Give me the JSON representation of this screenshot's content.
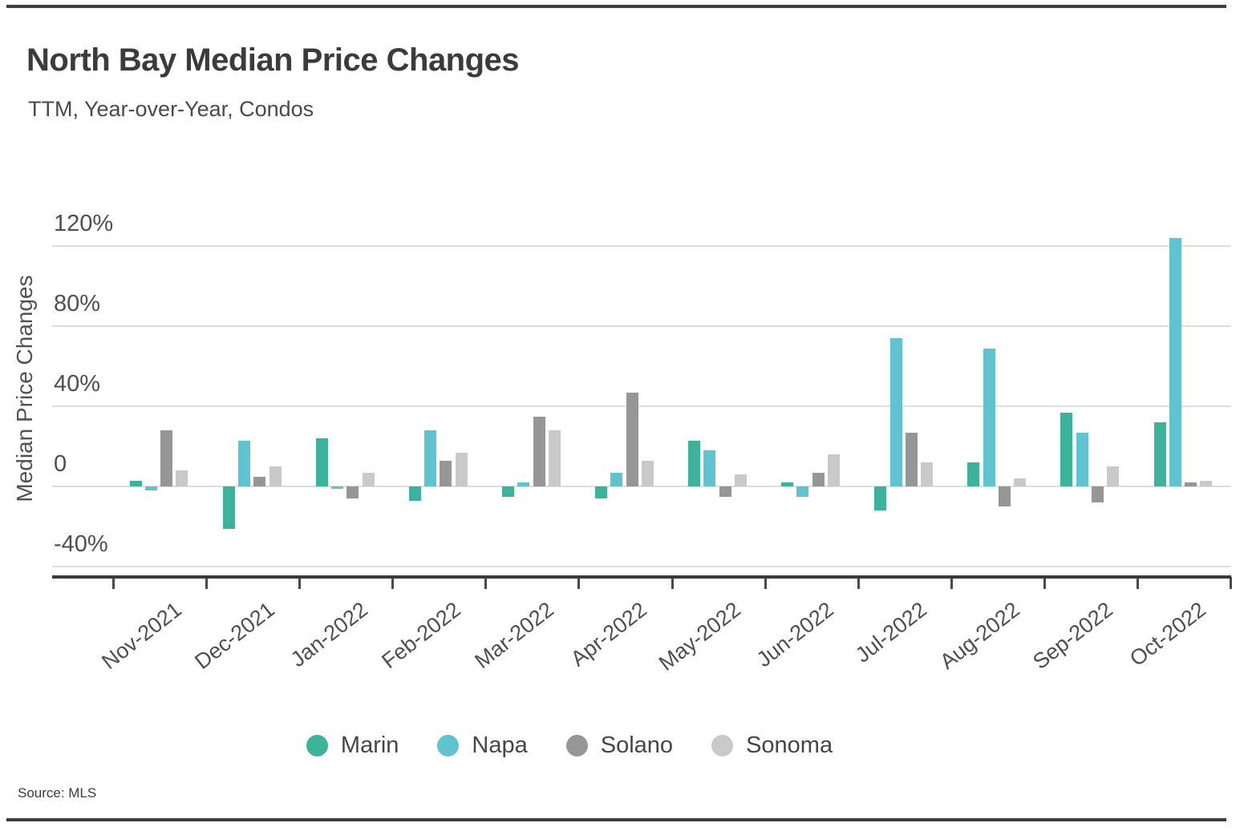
{
  "header": {
    "title": "North Bay Median Price Changes",
    "subtitle": "TTM, Year-over-Year, Condos"
  },
  "chart_data": {
    "type": "bar",
    "title": "North Bay Median Price Changes",
    "subtitle": "TTM, Year-over-Year, Condos",
    "ylabel": "Median Price Changes",
    "xlabel": "",
    "unit": "%",
    "categories": [
      "Nov-2021",
      "Dec-2021",
      "Jan-2022",
      "Feb-2022",
      "Mar-2022",
      "Apr-2022",
      "May-2022",
      "Jun-2022",
      "Jul-2022",
      "Aug-2022",
      "Sep-2022",
      "Oct-2022"
    ],
    "series": [
      {
        "name": "Marin",
        "color": "#3eb39b",
        "values": [
          3,
          -21,
          24,
          -7,
          -5,
          -6,
          23,
          2,
          -12,
          12,
          37,
          32
        ]
      },
      {
        "name": "Napa",
        "color": "#5fc4cf",
        "values": [
          -2,
          23,
          -1,
          28,
          2,
          7,
          18,
          -5,
          74,
          69,
          27,
          124
        ]
      },
      {
        "name": "Solano",
        "color": "#969696",
        "values": [
          28,
          5,
          -6,
          13,
          35,
          47,
          -5,
          7,
          27,
          -10,
          -8,
          2
        ]
      },
      {
        "name": "Sonoma",
        "color": "#c9c9c9",
        "values": [
          8,
          10,
          7,
          17,
          28,
          13,
          6,
          16,
          12,
          4,
          10,
          3
        ]
      }
    ],
    "yticks": [
      120,
      80,
      40,
      0,
      -40
    ],
    "ytick_labels": [
      "120%",
      "80%",
      "40%",
      "0",
      "-40%"
    ],
    "ylim": [
      -55,
      135
    ],
    "grid": true,
    "legend_position": "bottom"
  },
  "source": {
    "text": "Source: MLS"
  }
}
